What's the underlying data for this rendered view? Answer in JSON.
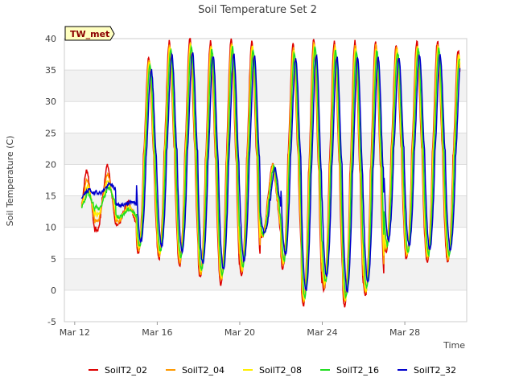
{
  "chart_data": {
    "type": "line",
    "title": "Soil Temperature Set 2",
    "xlabel": "Time",
    "ylabel": "Soil Temperature (C)",
    "badge": "TW_met",
    "ylim": [
      -5,
      40
    ],
    "yticks": [
      -5,
      0,
      5,
      10,
      15,
      20,
      25,
      30,
      35,
      40
    ],
    "xlim": [
      "2024-03-11 12:00",
      "2024-03-31 00:00"
    ],
    "xticks": [
      {
        "label": "Mar 12",
        "date": "2024-03-12"
      },
      {
        "label": "Mar 16",
        "date": "2024-03-16"
      },
      {
        "label": "Mar 20",
        "date": "2024-03-20"
      },
      {
        "label": "Mar 24",
        "date": "2024-03-24"
      },
      {
        "label": "Mar 28",
        "date": "2024-03-28"
      }
    ],
    "grid": true,
    "legend_position": "bottom",
    "series": [
      {
        "name": "SoilT2_02",
        "color": "#dd0000"
      },
      {
        "name": "SoilT2_04",
        "color": "#ff9900"
      },
      {
        "name": "SoilT2_08",
        "color": "#ffee00"
      },
      {
        "name": "SoilT2_16",
        "color": "#22dd22"
      },
      {
        "name": "SoilT2_32",
        "color": "#0000cc"
      }
    ],
    "daily_extremes": [
      {
        "date": "2024-03-12",
        "min": 8.5,
        "max": 19
      },
      {
        "date": "2024-03-13",
        "min": 9.5,
        "max": 19.8
      },
      {
        "date": "2024-03-14",
        "min": 10.5,
        "max": 14
      },
      {
        "date": "2024-03-15",
        "min": 6,
        "max": 37
      },
      {
        "date": "2024-03-16",
        "min": 5,
        "max": 39.5
      },
      {
        "date": "2024-03-17",
        "min": 4,
        "max": 40
      },
      {
        "date": "2024-03-18",
        "min": 2,
        "max": 39.5
      },
      {
        "date": "2024-03-19",
        "min": 1,
        "max": 40
      },
      {
        "date": "2024-03-20",
        "min": 2.5,
        "max": 39.5
      },
      {
        "date": "2024-03-21",
        "min": 8.5,
        "max": 20
      },
      {
        "date": "2024-03-22",
        "min": 3.5,
        "max": 39
      },
      {
        "date": "2024-03-23",
        "min": -2.5,
        "max": 40
      },
      {
        "date": "2024-03-24",
        "min": 0,
        "max": 39.5
      },
      {
        "date": "2024-03-25",
        "min": -2.5,
        "max": 39.5
      },
      {
        "date": "2024-03-26",
        "min": -1,
        "max": 39.5
      },
      {
        "date": "2024-03-27",
        "min": 6,
        "max": 39
      },
      {
        "date": "2024-03-28",
        "min": 5,
        "max": 39.5
      },
      {
        "date": "2024-03-29",
        "min": 4.5,
        "max": 39.5
      },
      {
        "date": "2024-03-30",
        "min": 4.5,
        "max": 38
      }
    ]
  }
}
